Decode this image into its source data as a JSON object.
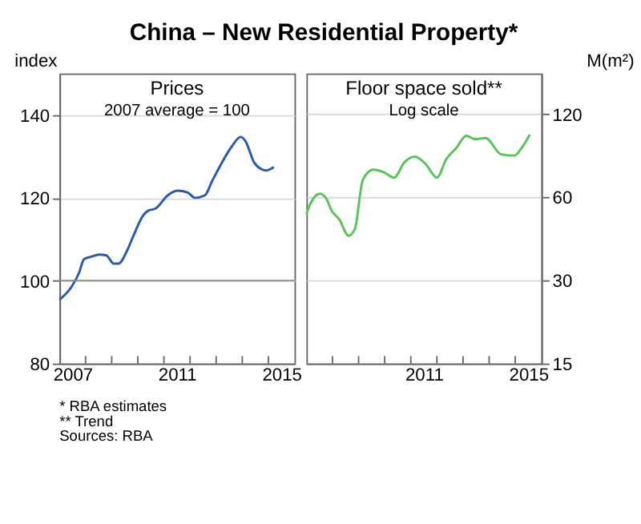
{
  "chart_data": [
    {
      "type": "line",
      "title": "China – New Residential Property*",
      "subtitle": "Prices\n2007 average = 100",
      "ylabel": "index",
      "series": [
        {
          "color": "#2a5caa",
          "x": [
            2007.0,
            2007.47,
            2007.75,
            2007.94,
            2008.23,
            2008.51,
            2008.79,
            2009.08,
            2009.26,
            2009.6,
            2009.83,
            2010.21,
            2010.4,
            2010.68,
            2011.15,
            2011.53,
            2011.9,
            2012.19,
            2012.57,
            2012.85,
            2013.23,
            2013.6,
            2013.94,
            2014.13,
            2014.45,
            2014.74,
            2014.92,
            2015.21
          ],
          "values": [
            95.4,
            98.6,
            101.9,
            105.2,
            105.8,
            106.3,
            106.1,
            104.1,
            104.1,
            107.4,
            110.8,
            115.8,
            116.9,
            117.4,
            120.6,
            121.7,
            121.3,
            120,
            120.6,
            124.1,
            128.6,
            132.4,
            134.7,
            133.6,
            128.6,
            126.9,
            126.6,
            127.4
          ]
        }
      ],
      "xlim": [
        2007,
        2016
      ],
      "xticks": [
        {
          "value": 2007.5,
          "label": "2007"
        },
        {
          "value": 2008,
          "label": null
        },
        {
          "value": 2009,
          "label": null
        },
        {
          "value": 2010,
          "label": null
        },
        {
          "value": 2011,
          "label": null
        },
        {
          "value": 2011.5,
          "label": "2011"
        },
        {
          "value": 2012,
          "label": null
        },
        {
          "value": 2013,
          "label": null
        },
        {
          "value": 2014,
          "label": null
        },
        {
          "value": 2015,
          "label": null
        },
        {
          "value": 2015.5,
          "label": "2015"
        }
      ],
      "ylim": [
        80,
        150
      ],
      "yticks": [
        80,
        100,
        120,
        140
      ],
      "grid": "y",
      "ref_lines": [
        {
          "axis": "y",
          "value": 100,
          "color": "#8c8c8c"
        }
      ],
      "annotations": [
        "*     RBA estimates",
        "**    Trend",
        "Sources:  RBA"
      ]
    },
    {
      "type": "line",
      "subtitle": "Floor space sold**\nLog scale",
      "ylabel": "M(m²)",
      "log": "y",
      "series": [
        {
          "color": "#5ac45a",
          "x": [
            2007.0,
            2007.16,
            2007.52,
            2007.76,
            2007.96,
            2008.26,
            2008.62,
            2008.86,
            2009.16,
            2009.56,
            2009.96,
            2010.36,
            2010.76,
            2011.16,
            2011.56,
            2012.0,
            2012.36,
            2012.76,
            2013.12,
            2013.46,
            2013.86,
            2014.46,
            2014.96,
            2015.26,
            2015.56
          ],
          "values": [
            52,
            57,
            61.7,
            59.3,
            53.8,
            49.8,
            43.5,
            46.1,
            69.2,
            75.4,
            73.9,
            70.6,
            80.3,
            84,
            79.2,
            70.6,
            82.4,
            90.8,
            100,
            97.3,
            98.1,
            85.7,
            84.7,
            90.8,
            101
          ]
        }
      ],
      "xlim": [
        2007,
        2016
      ],
      "xticks": [
        {
          "value": 2008,
          "label": null
        },
        {
          "value": 2009,
          "label": null
        },
        {
          "value": 2010,
          "label": null
        },
        {
          "value": 2011,
          "label": null
        },
        {
          "value": 2011.5,
          "label": "2011"
        },
        {
          "value": 2012,
          "label": null
        },
        {
          "value": 2013,
          "label": null
        },
        {
          "value": 2014,
          "label": null
        },
        {
          "value": 2015,
          "label": null
        },
        {
          "value": 2015.5,
          "label": "2015"
        }
      ],
      "ylim": [
        15,
        168
      ],
      "yticks": [
        15,
        30,
        60,
        120
      ],
      "grid": "y"
    }
  ]
}
